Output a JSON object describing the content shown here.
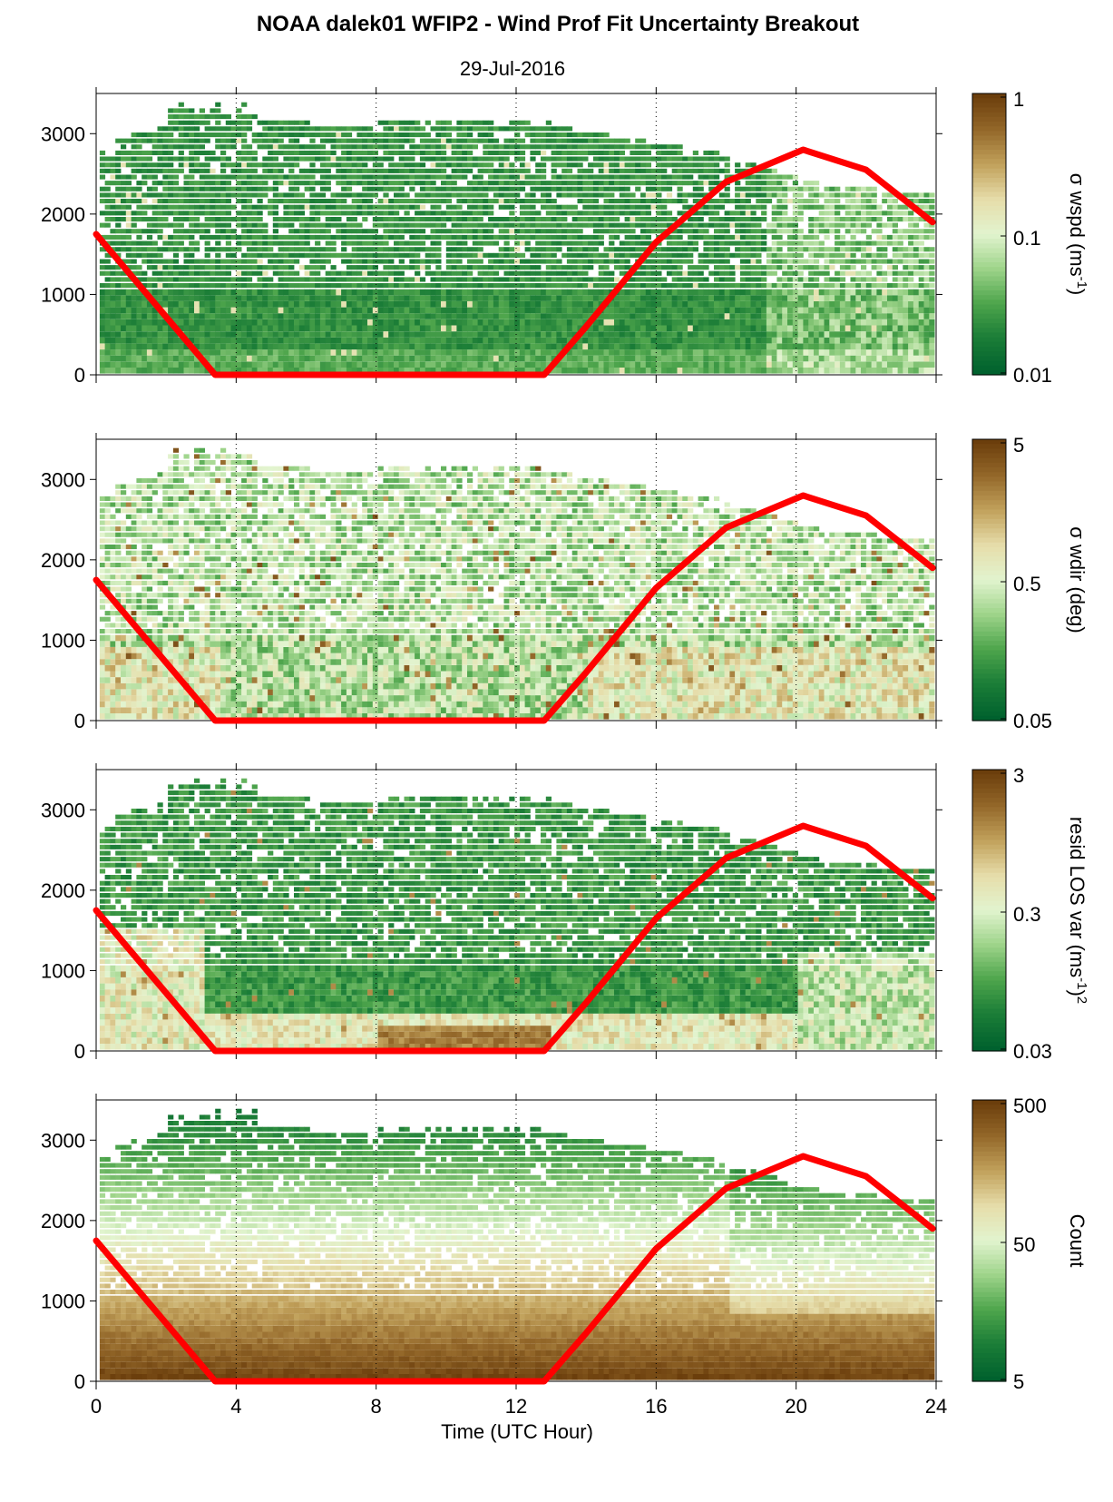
{
  "figure": {
    "title": "NOAA dalek01 WFIP2 - Wind Prof Fit Uncertainty Breakout",
    "subtitle": "29-Jul-2016",
    "xlabel": "Time (UTC Hour)"
  },
  "colors": {
    "sun_line": "#ff0000",
    "colormap": [
      "#00612e",
      "#1b7d37",
      "#4ea54c",
      "#9ed48a",
      "#e2f4cf",
      "#e6ddaa",
      "#c2a25c",
      "#94682a",
      "#6b3e0c"
    ]
  },
  "chart_data": [
    {
      "type": "heatmap",
      "name": "wspd",
      "colorbar_label": "σ wspd (ms",
      "colorbar_sup": "-1",
      "colorbar_tail": ")",
      "colorbar_ticks": [
        "1",
        "0.1",
        "0.01"
      ],
      "xlim": [
        0,
        24
      ],
      "ylim": [
        0,
        3500
      ],
      "xticks": [
        0,
        4,
        8,
        12,
        16,
        20,
        24
      ],
      "yticks": [
        0,
        1000,
        2000,
        3000
      ],
      "grid": "dotted vertical at 4, 8, 12, 16, 20",
      "overlay_line": {
        "x": [
          0,
          3.4,
          12.8,
          14,
          16,
          18,
          20.2,
          22,
          23.9
        ],
        "y": [
          1750,
          0,
          0,
          600,
          1650,
          2400,
          2800,
          2550,
          1900
        ]
      }
    },
    {
      "type": "heatmap",
      "name": "wdir",
      "colorbar_label": "σ wdir (deg)",
      "colorbar_ticks": [
        "5",
        "0.5",
        "0.05"
      ],
      "xlim": [
        0,
        24
      ],
      "ylim": [
        0,
        3500
      ],
      "xticks": [
        0,
        4,
        8,
        12,
        16,
        20,
        24
      ],
      "yticks": [
        0,
        1000,
        2000,
        3000
      ],
      "grid": "dotted vertical at 4, 8, 12, 16, 20",
      "overlay_line": {
        "x": [
          0,
          3.4,
          12.8,
          14,
          16,
          18,
          20.2,
          22,
          23.9
        ],
        "y": [
          1750,
          0,
          0,
          600,
          1650,
          2400,
          2800,
          2550,
          1900
        ]
      }
    },
    {
      "type": "heatmap",
      "name": "resid",
      "colorbar_label": "resid LOS var (ms",
      "colorbar_sup": "-1",
      "colorbar_tail": ")",
      "colorbar_sup2": "2",
      "colorbar_ticks": [
        "3",
        "0.3",
        "0.03"
      ],
      "xlim": [
        0,
        24
      ],
      "ylim": [
        0,
        3500
      ],
      "xticks": [
        0,
        4,
        8,
        12,
        16,
        20,
        24
      ],
      "yticks": [
        0,
        1000,
        2000,
        3000
      ],
      "grid": "dotted vertical at 4, 8, 12, 16, 20",
      "overlay_line": {
        "x": [
          0,
          3.4,
          12.8,
          14,
          16,
          18,
          20.2,
          22,
          23.9
        ],
        "y": [
          1750,
          0,
          0,
          600,
          1650,
          2400,
          2800,
          2550,
          1900
        ]
      }
    },
    {
      "type": "heatmap",
      "name": "count",
      "colorbar_label": "Count",
      "colorbar_ticks": [
        "500",
        "50",
        "5"
      ],
      "xlim": [
        0,
        24
      ],
      "ylim": [
        0,
        3500
      ],
      "xticks": [
        0,
        4,
        8,
        12,
        16,
        20,
        24
      ],
      "yticks": [
        0,
        1000,
        2000,
        3000
      ],
      "grid": "dotted vertical at 4, 8, 12, 16, 20",
      "overlay_line": {
        "x": [
          0,
          3.4,
          12.8,
          14,
          16,
          18,
          20.2,
          22,
          23.9
        ],
        "y": [
          1750,
          0,
          0,
          600,
          1650,
          2400,
          2800,
          2550,
          1900
        ]
      }
    }
  ]
}
